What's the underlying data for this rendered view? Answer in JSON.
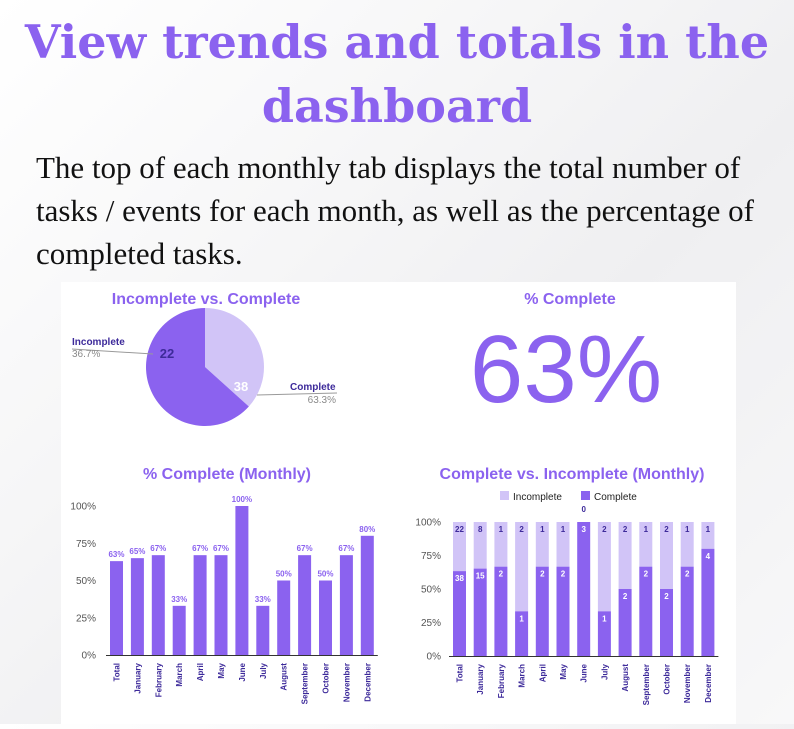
{
  "heading": "View trends and totals in the dashboard",
  "description": "The top of each monthly tab displays the total number of tasks / events for each month, as well as the percentage of completed tasks.",
  "colors": {
    "accent": "#8b62ef",
    "complete": "#8b62ef",
    "incomplete": "#d1c4f7",
    "label_purple": "#3d2a9a"
  },
  "chart_data": [
    {
      "type": "pie",
      "title": "Incomplete vs. Complete",
      "slices": [
        {
          "label": "Incomplete",
          "value": 22,
          "percent": "36.7%"
        },
        {
          "label": "Complete",
          "value": 38,
          "percent": "63.3%"
        }
      ]
    },
    {
      "type": "scorecard",
      "title": "% Complete",
      "value": "63%"
    },
    {
      "type": "bar",
      "title": "% Complete (Monthly)",
      "categories": [
        "Total",
        "January",
        "February",
        "March",
        "April",
        "May",
        "June",
        "July",
        "August",
        "September",
        "October",
        "November",
        "December"
      ],
      "values": [
        63,
        65,
        67,
        33,
        67,
        67,
        100,
        33,
        50,
        67,
        50,
        67,
        80
      ],
      "value_labels": [
        "63%",
        "65%",
        "67%",
        "33%",
        "67%",
        "67%",
        "100%",
        "33%",
        "50%",
        "67%",
        "50%",
        "67%",
        "80%"
      ],
      "yticks": [
        "0%",
        "25%",
        "50%",
        "75%",
        "100%"
      ],
      "ylim": [
        0,
        100
      ],
      "grid": false
    },
    {
      "type": "bar",
      "stacked": "percent",
      "title": "Complete vs. Incomplete (Monthly)",
      "legend": [
        "Incomplete",
        "Complete"
      ],
      "legend_position": "top",
      "categories": [
        "Total",
        "January",
        "February",
        "March",
        "April",
        "May",
        "June",
        "July",
        "August",
        "September",
        "October",
        "November",
        "December"
      ],
      "series": [
        {
          "name": "Complete",
          "values": [
            38,
            15,
            2,
            1,
            2,
            2,
            3,
            1,
            2,
            2,
            2,
            2,
            4
          ]
        },
        {
          "name": "Incomplete",
          "values": [
            22,
            8,
            1,
            2,
            1,
            1,
            0,
            2,
            2,
            1,
            2,
            1,
            1
          ]
        }
      ],
      "yticks": [
        "0%",
        "25%",
        "50%",
        "75%",
        "100%"
      ],
      "ylim": [
        0,
        100
      ]
    }
  ]
}
